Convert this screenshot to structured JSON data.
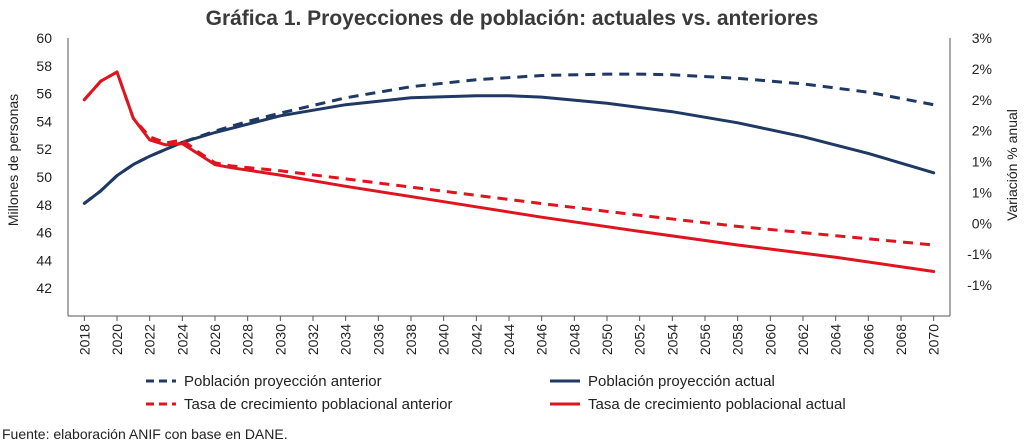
{
  "chart_data": {
    "type": "line",
    "title": "Gráfica 1. Proyecciones de población: actuales vs. anteriores",
    "ylabel_left": "Millones de personas",
    "ylabel_right": "Variación % anual",
    "y_left": {
      "min": 40,
      "max": 60,
      "ticks": [
        42,
        44,
        46,
        48,
        50,
        52,
        54,
        56,
        58,
        60
      ]
    },
    "y_right": {
      "min": -1.5,
      "max": 3.0,
      "ticks": [
        -1.0,
        -0.5,
        0.0,
        0.5,
        1.0,
        1.5,
        2.0,
        2.5,
        3.0
      ],
      "tick_labels": [
        "-1%",
        "-1%",
        "0%",
        "1%",
        "1%",
        "2%",
        "2%",
        "2%",
        "3%"
      ]
    },
    "x_ticks": [
      2018,
      2020,
      2022,
      2024,
      2026,
      2028,
      2030,
      2032,
      2034,
      2036,
      2038,
      2040,
      2042,
      2044,
      2046,
      2048,
      2050,
      2052,
      2054,
      2056,
      2058,
      2060,
      2062,
      2064,
      2066,
      2068,
      2070
    ],
    "x_range": [
      2017,
      2071
    ],
    "legend_position": "bottom",
    "grid": false,
    "series": [
      {
        "name": "Población proyección anterior",
        "axis": "left",
        "color": "#1f3864",
        "dash": true,
        "x": [
          2018,
          2019,
          2020,
          2021,
          2022,
          2023,
          2024,
          2026,
          2028,
          2030,
          2034,
          2038,
          2042,
          2046,
          2050,
          2052,
          2054,
          2058,
          2062,
          2066,
          2070
        ],
        "y": [
          48.1,
          49.0,
          50.1,
          50.9,
          51.5,
          52.0,
          52.5,
          53.3,
          54.0,
          54.6,
          55.7,
          56.5,
          57.0,
          57.3,
          57.4,
          57.4,
          57.35,
          57.1,
          56.7,
          56.1,
          55.2
        ]
      },
      {
        "name": "Población proyección actual",
        "axis": "left",
        "color": "#1f3864",
        "dash": false,
        "x": [
          2018,
          2019,
          2020,
          2021,
          2022,
          2023,
          2024,
          2026,
          2028,
          2030,
          2034,
          2038,
          2042,
          2044,
          2046,
          2050,
          2054,
          2058,
          2062,
          2066,
          2070
        ],
        "y": [
          48.1,
          49.0,
          50.1,
          50.9,
          51.5,
          52.0,
          52.5,
          53.2,
          53.8,
          54.4,
          55.2,
          55.7,
          55.85,
          55.85,
          55.75,
          55.3,
          54.7,
          53.9,
          52.9,
          51.7,
          50.3
        ]
      },
      {
        "name": "Tasa de crecimiento poblacional anterior",
        "axis": "right",
        "color": "#e0141e",
        "dash": true,
        "x": [
          2018,
          2019,
          2020,
          2021,
          2022,
          2023,
          2024,
          2025,
          2026,
          2027,
          2030,
          2034,
          2040,
          2046,
          2052,
          2058,
          2064,
          2070
        ],
        "y": [
          2.0,
          2.3,
          2.45,
          1.7,
          1.4,
          1.3,
          1.35,
          1.15,
          0.98,
          0.93,
          0.85,
          0.72,
          0.52,
          0.32,
          0.13,
          -0.05,
          -0.2,
          -0.35
        ]
      },
      {
        "name": "Tasa de crecimiento poblacional actual",
        "axis": "right",
        "color": "#e0141e",
        "dash": false,
        "x": [
          2018,
          2019,
          2020,
          2021,
          2022,
          2023,
          2024,
          2025,
          2026,
          2027,
          2030,
          2034,
          2040,
          2046,
          2052,
          2058,
          2064,
          2070
        ],
        "y": [
          2.0,
          2.3,
          2.45,
          1.7,
          1.35,
          1.27,
          1.29,
          1.12,
          0.95,
          0.9,
          0.78,
          0.6,
          0.35,
          0.1,
          -0.13,
          -0.35,
          -0.55,
          -0.78
        ]
      }
    ]
  },
  "source": "Fuente: elaboración ANIF con base en DANE."
}
